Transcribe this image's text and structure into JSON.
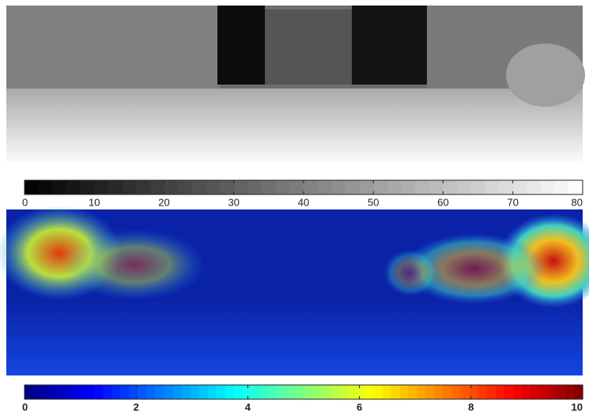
{
  "chart_data": [
    {
      "type": "colorbar",
      "colormap": "gray",
      "xlim": [
        0,
        80
      ],
      "xticks": [
        0,
        10,
        20,
        30,
        40,
        50,
        60,
        70,
        80
      ],
      "bold": false
    },
    {
      "type": "colorbar",
      "colormap": "jet",
      "xlim": [
        0,
        10
      ],
      "xticks": [
        0,
        2,
        4,
        6,
        8,
        10
      ],
      "bold": true
    }
  ]
}
